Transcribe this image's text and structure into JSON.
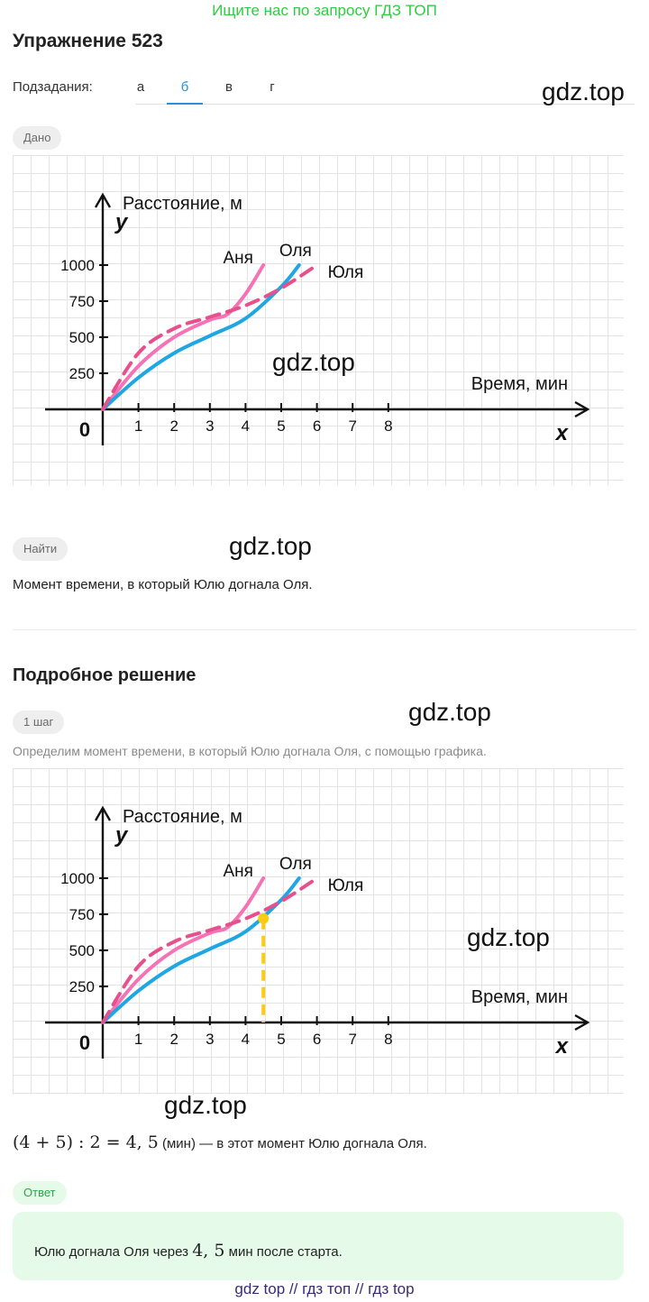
{
  "banner": "Ищите нас по запросу ГДЗ ТОП",
  "title": "Упражнение 523",
  "subtasks": {
    "label": "Подзадания:",
    "tabs": [
      "а",
      "б",
      "в",
      "г"
    ],
    "active": "б"
  },
  "watermark": "gdz.top",
  "given": {
    "pill": "Дано"
  },
  "find": {
    "pill": "Найти",
    "text": "Момент времени, в который Юлю догнала Оля."
  },
  "solution": {
    "title": "Подробное решение",
    "step_pill": "1 шаг",
    "step_text": "Определим момент времени, в который Юлю догнала Оля, с помощью графика.",
    "formula": "(4 + 5) : 2 = 4, 5",
    "formula_unit": "(мин)",
    "formula_rest": "— в этот момент Юлю догнала Оля."
  },
  "answer": {
    "pill": "Ответ",
    "before": "Юлю догнала Оля через",
    "value": "4, 5",
    "after": "мин после старта."
  },
  "footer": "gdz top  //  гдз топ  //  гдз top",
  "chart_data": [
    {
      "type": "line",
      "ylabel": "Расстояние, м",
      "xlabel": "Время, мин",
      "y_axis_letter": "y",
      "x_axis_letter": "x",
      "origin_label": "0",
      "x_ticks": [
        "1",
        "2",
        "3",
        "4",
        "5",
        "6",
        "7",
        "8"
      ],
      "y_ticks": [
        "250",
        "500",
        "750",
        "1000"
      ],
      "xlim": [
        0,
        8.8
      ],
      "ylim": [
        0,
        1200
      ],
      "series": [
        {
          "name": "Аня",
          "color": "#f472b6",
          "style": "solid",
          "x": [
            0,
            1,
            2,
            3,
            3.5,
            4,
            4.5
          ],
          "y": [
            0,
            300,
            500,
            620,
            660,
            800,
            1000
          ]
        },
        {
          "name": "Оля",
          "color": "#1ea7e0",
          "style": "solid",
          "x": [
            0,
            1,
            2,
            3,
            4,
            5,
            5.5
          ],
          "y": [
            0,
            220,
            390,
            510,
            630,
            850,
            1000
          ]
        },
        {
          "name": "Юля",
          "color": "#e6508c",
          "style": "dashed",
          "x": [
            0,
            1,
            2,
            3,
            4,
            5,
            6
          ],
          "y": [
            0,
            390,
            560,
            640,
            720,
            840,
            1000
          ]
        }
      ]
    },
    {
      "type": "line",
      "ylabel": "Расстояние, м",
      "xlabel": "Время, мин",
      "y_axis_letter": "y",
      "x_axis_letter": "x",
      "origin_label": "0",
      "x_ticks": [
        "1",
        "2",
        "3",
        "4",
        "5",
        "6",
        "7",
        "8"
      ],
      "y_ticks": [
        "250",
        "500",
        "750",
        "1000"
      ],
      "xlim": [
        0,
        8.8
      ],
      "ylim": [
        0,
        1200
      ],
      "series": [
        {
          "name": "Аня",
          "color": "#f472b6",
          "style": "solid",
          "x": [
            0,
            1,
            2,
            3,
            3.5,
            4,
            4.5
          ],
          "y": [
            0,
            300,
            500,
            620,
            660,
            800,
            1000
          ]
        },
        {
          "name": "Оля",
          "color": "#1ea7e0",
          "style": "solid",
          "x": [
            0,
            1,
            2,
            3,
            4,
            5,
            5.5
          ],
          "y": [
            0,
            220,
            390,
            510,
            630,
            850,
            1000
          ]
        },
        {
          "name": "Юля",
          "color": "#e6508c",
          "style": "dashed",
          "x": [
            0,
            1,
            2,
            3,
            4,
            5,
            6
          ],
          "y": [
            0,
            390,
            560,
            640,
            720,
            840,
            1000
          ]
        }
      ],
      "marker": {
        "x": 4.5,
        "y": 720,
        "color": "#facc15"
      }
    }
  ]
}
